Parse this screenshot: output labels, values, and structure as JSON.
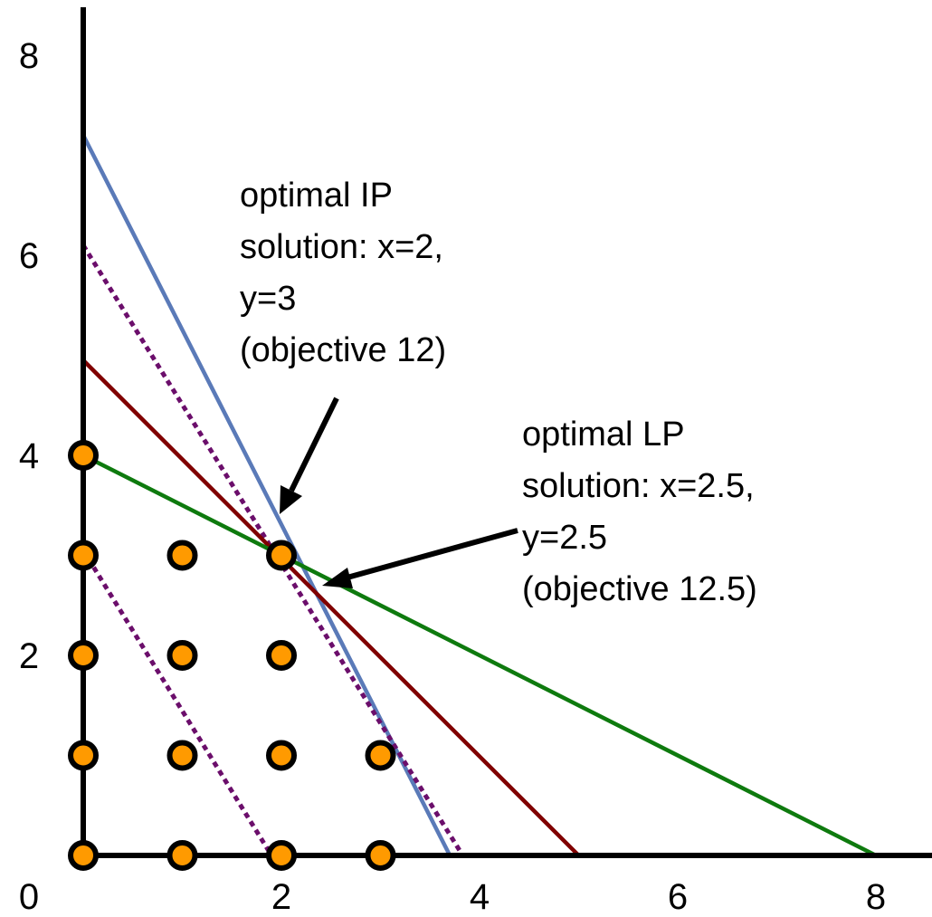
{
  "chart_data": {
    "type": "scatter",
    "title": "",
    "xlabel": "",
    "ylabel": "",
    "xlim": [
      0,
      8.7
    ],
    "ylim": [
      0,
      8.7
    ],
    "grid": false,
    "x_ticks": [
      0,
      2,
      4,
      6,
      8
    ],
    "y_ticks": [
      2,
      4,
      6,
      8
    ],
    "x_tick_labels": [
      "0",
      "2",
      "4",
      "6",
      "8"
    ],
    "y_tick_labels": [
      "2",
      "4",
      "6",
      "8"
    ],
    "integer_points": [
      {
        "x": 0,
        "y": 0
      },
      {
        "x": 1,
        "y": 0
      },
      {
        "x": 2,
        "y": 0
      },
      {
        "x": 3,
        "y": 0
      },
      {
        "x": 0,
        "y": 1
      },
      {
        "x": 1,
        "y": 1
      },
      {
        "x": 2,
        "y": 1
      },
      {
        "x": 3,
        "y": 1
      },
      {
        "x": 0,
        "y": 2
      },
      {
        "x": 1,
        "y": 2
      },
      {
        "x": 2,
        "y": 2
      },
      {
        "x": 0,
        "y": 3
      },
      {
        "x": 1,
        "y": 3
      },
      {
        "x": 2,
        "y": 3
      },
      {
        "x": 0,
        "y": 4
      }
    ],
    "point_color": "#FF9A00",
    "lines": [
      {
        "color": "#5A7AB8",
        "style": "solid",
        "points": [
          [
            0,
            7.2
          ],
          [
            3.7,
            0
          ]
        ]
      },
      {
        "color": "#6B0E6B",
        "style": "dotted",
        "points": [
          [
            0,
            6.1
          ],
          [
            3.83,
            0
          ]
        ]
      },
      {
        "color": "#6B0E6B",
        "style": "dotted",
        "points": [
          [
            0,
            3.05
          ],
          [
            1.9,
            0
          ]
        ]
      },
      {
        "color": "#800000",
        "style": "solid",
        "points": [
          [
            0,
            4.95
          ],
          [
            5,
            0
          ]
        ]
      },
      {
        "color": "#0E7A0E",
        "style": "solid",
        "points": [
          [
            0,
            4
          ],
          [
            8,
            0
          ]
        ]
      }
    ],
    "annotations": [
      {
        "lines": [
          "optimal IP",
          "solution: x=2,",
          "y=3",
          "(objective 12)"
        ],
        "target": [
          2,
          3
        ]
      },
      {
        "lines": [
          "optimal LP",
          "solution: x=2.5,",
          "y=2.5",
          "(objective 12.5)"
        ],
        "target": [
          2.5,
          2.5
        ]
      }
    ]
  }
}
